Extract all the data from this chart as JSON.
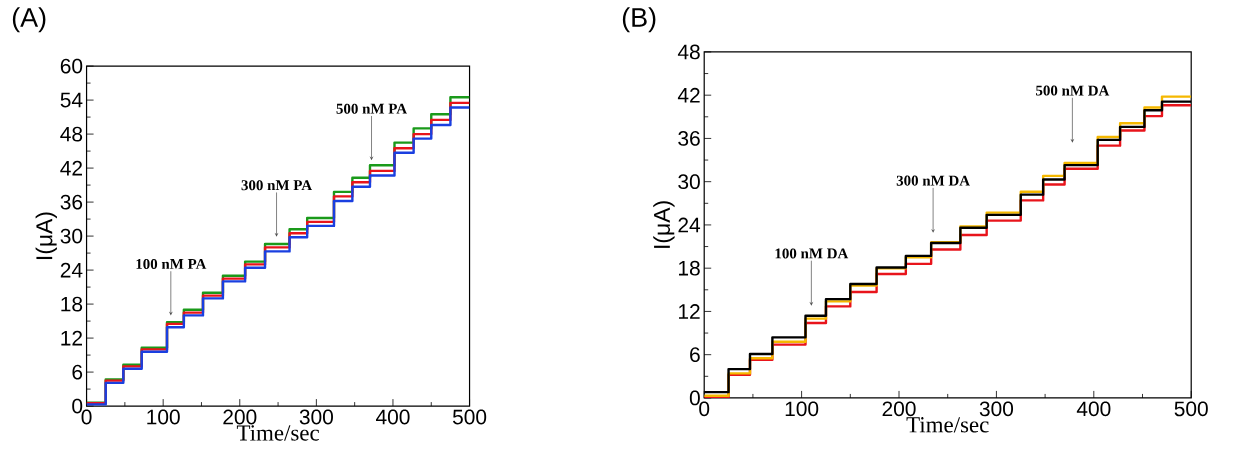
{
  "chart_data": [
    {
      "type": "step",
      "title": "(A)",
      "xlabel": "Time/sec",
      "ylabel": "I(μA)",
      "xlim": [
        0,
        500
      ],
      "ylim": [
        0,
        60
      ],
      "xticks": [
        0,
        100,
        200,
        300,
        400,
        500
      ],
      "yticks": [
        0,
        6,
        12,
        18,
        24,
        30,
        36,
        42,
        48,
        54,
        60
      ],
      "x": [
        0,
        25,
        48,
        72,
        105,
        127,
        152,
        178,
        207,
        233,
        265,
        288,
        323,
        347,
        370,
        402,
        427,
        450,
        475,
        500
      ],
      "series": [
        {
          "color": "#1a9a1a",
          "values": [
            0.6,
            4.7,
            7.3,
            10.3,
            14.8,
            17,
            20,
            23,
            25.5,
            28.6,
            31.2,
            33.2,
            37.8,
            40.3,
            42.5,
            46.5,
            49,
            51.5,
            54.5,
            54.5
          ]
        },
        {
          "color": "#e8141b",
          "values": [
            0.5,
            4.5,
            7,
            10,
            14.5,
            16.5,
            19.5,
            22.5,
            25,
            28,
            30.5,
            32.5,
            37,
            39.5,
            41.5,
            45.5,
            48,
            50.5,
            53.5,
            53.5
          ]
        },
        {
          "color": "#1a3fe0",
          "values": [
            0.3,
            4.1,
            6.6,
            9.6,
            13.9,
            16,
            19,
            22,
            24.4,
            27.3,
            29.8,
            31.8,
            36.2,
            38.7,
            40.7,
            44.7,
            47.2,
            49.6,
            52.7,
            52.7
          ]
        }
      ],
      "annotations": [
        {
          "text": "100 nM PA",
          "x": 110,
          "y": 16
        },
        {
          "text": "300 nM PA",
          "x": 248,
          "y": 29.9
        },
        {
          "text": "500 nM PA",
          "x": 372,
          "y": 43.4
        }
      ]
    },
    {
      "type": "step",
      "title": "(B)",
      "xlabel": "Time/sec",
      "ylabel": "I(μA)",
      "xlim": [
        0,
        500
      ],
      "ylim": [
        0,
        48
      ],
      "xticks": [
        0,
        100,
        200,
        300,
        400,
        500
      ],
      "yticks": [
        0,
        6,
        12,
        18,
        24,
        30,
        36,
        42,
        48
      ],
      "x": [
        0,
        25,
        47,
        70,
        104,
        125,
        150,
        177,
        207,
        233,
        263,
        290,
        325,
        348,
        370,
        404,
        427,
        452,
        470,
        500
      ],
      "series": [
        {
          "color": "#e8141b",
          "values": [
            0.1,
            3.2,
            5.3,
            7.4,
            10.4,
            12.7,
            14.7,
            17.2,
            18.6,
            20.6,
            22.6,
            24.6,
            27.4,
            29.6,
            31.8,
            35,
            37.1,
            39.1,
            40.6,
            40.6
          ]
        },
        {
          "color": "#f5b800",
          "values": [
            0.3,
            3.4,
            5.5,
            7.8,
            11,
            13.4,
            15.6,
            18,
            19.5,
            21.6,
            23.8,
            25.7,
            28.6,
            30.8,
            32.6,
            36.2,
            38.1,
            40.3,
            41.8,
            41.8
          ]
        },
        {
          "color": "#000000",
          "values": [
            0.8,
            4,
            6.1,
            8.4,
            11.4,
            13.7,
            15.8,
            18.1,
            19.7,
            21.5,
            23.6,
            25.4,
            28.2,
            30.3,
            32.3,
            35.8,
            37.6,
            39.9,
            41.1,
            41.1
          ]
        }
      ],
      "annotations": [
        {
          "text": "100 nM DA",
          "x": 110,
          "y": 12.8
        },
        {
          "text": "300 nM DA",
          "x": 235,
          "y": 22.9
        },
        {
          "text": "500 nM DA",
          "x": 378,
          "y": 35.4
        }
      ]
    }
  ]
}
